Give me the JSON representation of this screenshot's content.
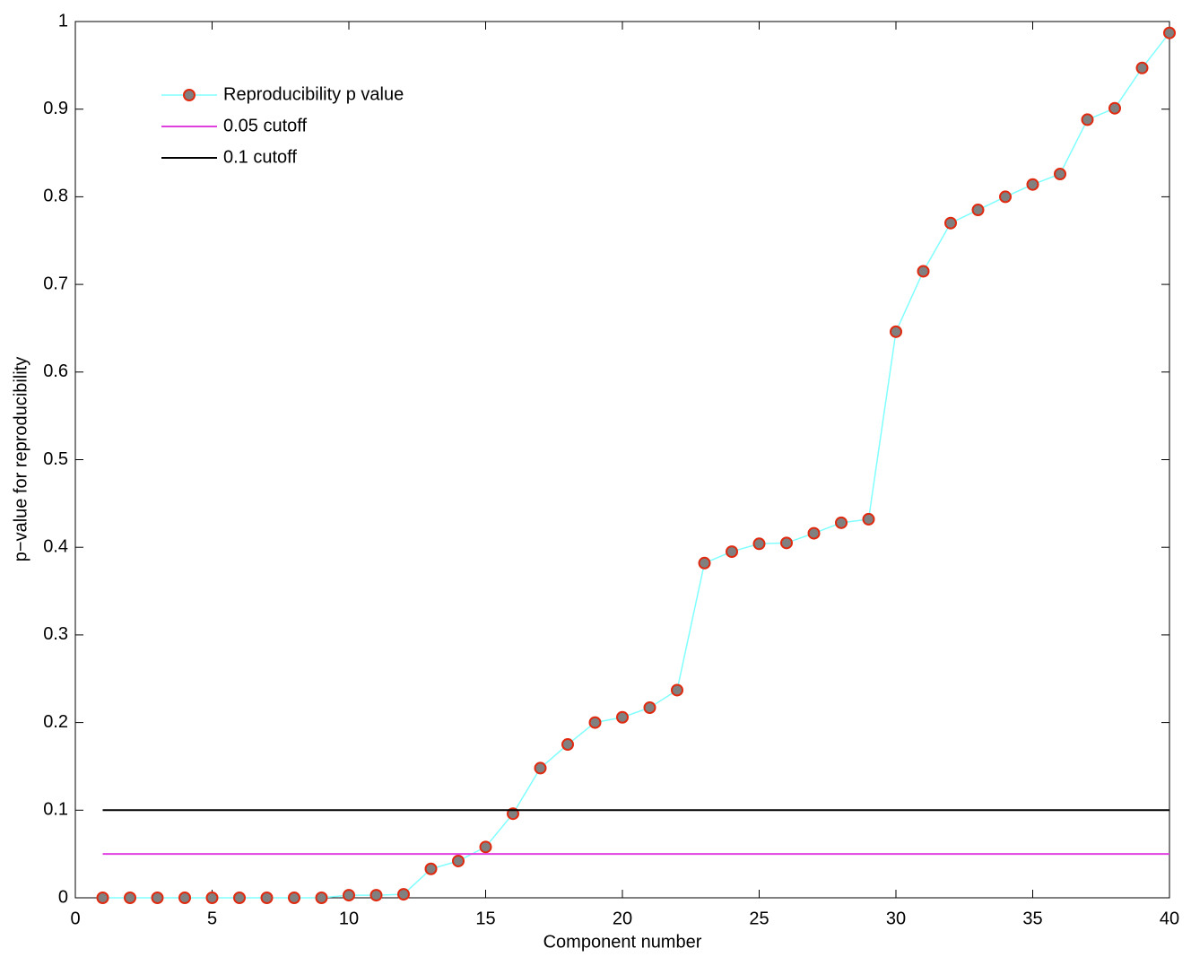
{
  "chart_data": {
    "type": "line",
    "xlabel": "Component number",
    "ylabel": "p−value for reproducibility",
    "xlim": [
      0,
      40
    ],
    "xticks": [
      0,
      5,
      10,
      15,
      20,
      25,
      30,
      35,
      40
    ],
    "ylim": [
      0,
      1
    ],
    "yticks": [
      0,
      0.1,
      0.2,
      0.3,
      0.4,
      0.5,
      0.6,
      0.7,
      0.8,
      0.9,
      1
    ],
    "legend": "upper left",
    "series": [
      {
        "name": "Reproducibility p value",
        "color": "#80ffff",
        "marker": true,
        "marker_face": "#808080",
        "marker_edge": "#e02a10",
        "x": [
          1,
          2,
          3,
          4,
          5,
          6,
          7,
          8,
          9,
          10,
          11,
          12,
          13,
          14,
          15,
          16,
          17,
          18,
          19,
          20,
          21,
          22,
          23,
          24,
          25,
          26,
          27,
          28,
          29,
          30,
          31,
          32,
          33,
          34,
          35,
          36,
          37,
          38,
          39,
          40
        ],
        "values": [
          0,
          0,
          0,
          0,
          0,
          0,
          0,
          0,
          0,
          0.003,
          0.003,
          0.004,
          0.033,
          0.042,
          0.058,
          0.096,
          0.148,
          0.175,
          0.2,
          0.206,
          0.217,
          0.237,
          0.382,
          0.395,
          0.404,
          0.405,
          0.416,
          0.428,
          0.432,
          0.646,
          0.715,
          0.77,
          0.785,
          0.8,
          0.814,
          0.826,
          0.888,
          0.901,
          0.947,
          0.987
        ]
      },
      {
        "name": "0.05 cutoff",
        "color": "#e040e0",
        "marker": false,
        "x": [
          1,
          40
        ],
        "values": [
          0.05,
          0.05
        ]
      },
      {
        "name": "0.1 cutoff",
        "color": "#000000",
        "marker": false,
        "x": [
          1,
          40
        ],
        "values": [
          0.1,
          0.1
        ]
      }
    ]
  }
}
